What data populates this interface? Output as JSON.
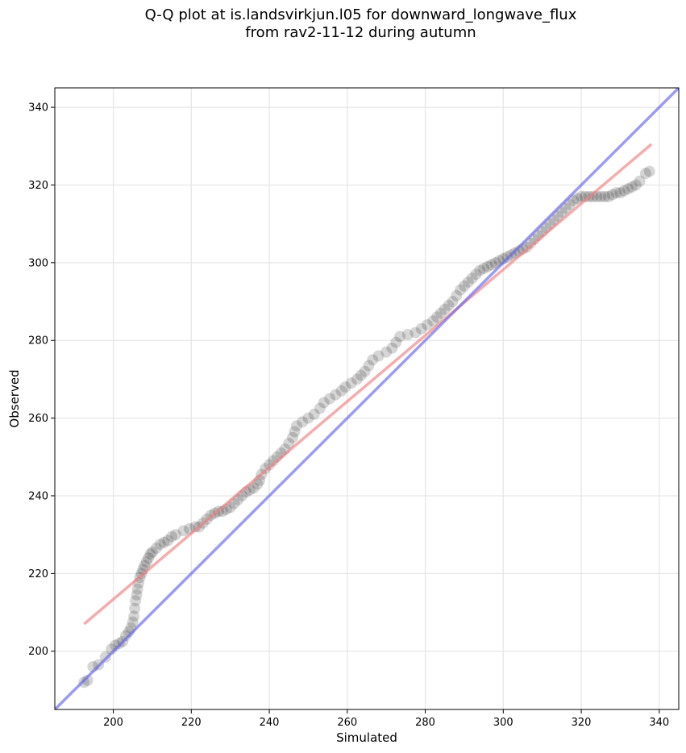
{
  "chart_data": {
    "type": "scatter",
    "title": [
      "Q-Q plot at is.landsvirkjun.l05 for downward_longwave_flux",
      "from rav2-11-12 during autumn"
    ],
    "xlabel": "Simulated",
    "ylabel": "Observed",
    "xlim": [
      185,
      345
    ],
    "ylim": [
      185,
      345
    ],
    "xticks": [
      200,
      220,
      240,
      260,
      280,
      300,
      320,
      340
    ],
    "yticks": [
      200,
      220,
      240,
      260,
      280,
      300,
      320,
      340
    ],
    "grid": true,
    "series": [
      {
        "name": "quantiles",
        "color": "#000000",
        "points": [
          [
            192.5,
            192
          ],
          [
            193.4,
            192.5
          ],
          [
            194.8,
            196
          ],
          [
            196.2,
            196.5
          ],
          [
            198,
            198.5
          ],
          [
            199.5,
            200.5
          ],
          [
            200.5,
            201.5
          ],
          [
            201.5,
            202
          ],
          [
            202.4,
            202.5
          ],
          [
            203.2,
            204
          ],
          [
            204,
            205
          ],
          [
            204.5,
            206
          ],
          [
            205,
            207.5
          ],
          [
            205.3,
            209
          ],
          [
            205.5,
            211
          ],
          [
            205.7,
            213
          ],
          [
            206,
            214.5
          ],
          [
            206.2,
            216
          ],
          [
            206.5,
            217.5
          ],
          [
            206.8,
            219
          ],
          [
            207.2,
            220
          ],
          [
            207.6,
            221
          ],
          [
            208,
            222
          ],
          [
            208.5,
            223
          ],
          [
            209,
            224
          ],
          [
            209.5,
            225
          ],
          [
            210,
            225.5
          ],
          [
            211,
            226.5
          ],
          [
            212,
            227.5
          ],
          [
            213,
            228
          ],
          [
            214,
            228.5
          ],
          [
            215,
            229.5
          ],
          [
            216,
            230
          ],
          [
            218,
            231
          ],
          [
            219.5,
            231.5
          ],
          [
            221,
            232
          ],
          [
            222,
            232
          ],
          [
            223,
            233
          ],
          [
            224,
            234
          ],
          [
            225,
            235
          ],
          [
            226,
            235.5
          ],
          [
            227,
            236
          ],
          [
            228,
            236
          ],
          [
            229,
            236.5
          ],
          [
            230,
            237
          ],
          [
            231,
            238
          ],
          [
            232,
            239
          ],
          [
            233,
            240
          ],
          [
            234,
            241
          ],
          [
            235,
            241.5
          ],
          [
            236,
            242
          ],
          [
            237,
            243
          ],
          [
            237.5,
            244
          ],
          [
            238,
            245.5
          ],
          [
            239,
            247
          ],
          [
            240,
            248
          ],
          [
            241,
            249
          ],
          [
            242,
            250
          ],
          [
            243,
            251
          ],
          [
            244,
            252
          ],
          [
            245,
            253.5
          ],
          [
            246,
            255
          ],
          [
            246.5,
            256.5
          ],
          [
            247,
            258
          ],
          [
            248.5,
            259
          ],
          [
            250,
            260
          ],
          [
            251.5,
            261
          ],
          [
            253,
            262.5
          ],
          [
            254,
            264
          ],
          [
            255.5,
            265
          ],
          [
            257,
            266
          ],
          [
            258.5,
            267
          ],
          [
            259.5,
            268
          ],
          [
            261,
            269
          ],
          [
            262.5,
            270
          ],
          [
            263.5,
            271
          ],
          [
            264.5,
            272
          ],
          [
            265.5,
            273.5
          ],
          [
            266.5,
            275
          ],
          [
            268,
            276
          ],
          [
            270,
            277
          ],
          [
            271.5,
            278
          ],
          [
            272.5,
            279.5
          ],
          [
            273.5,
            281
          ],
          [
            275.5,
            281.5
          ],
          [
            277.5,
            282
          ],
          [
            279,
            283
          ],
          [
            280.5,
            284
          ],
          [
            282,
            285
          ],
          [
            283,
            286
          ],
          [
            284,
            287
          ],
          [
            285,
            288
          ],
          [
            286,
            289
          ],
          [
            287,
            290
          ],
          [
            288,
            291.5
          ],
          [
            289,
            293
          ],
          [
            290,
            294
          ],
          [
            291,
            295
          ],
          [
            292,
            296
          ],
          [
            293,
            297
          ],
          [
            294,
            298
          ],
          [
            295,
            298.5
          ],
          [
            296,
            299
          ],
          [
            297,
            299.5
          ],
          [
            298,
            300
          ],
          [
            299,
            300.5
          ],
          [
            300,
            301
          ],
          [
            301,
            301.5
          ],
          [
            302,
            302
          ],
          [
            303,
            302.5
          ],
          [
            304,
            303
          ],
          [
            305,
            303.5
          ],
          [
            306,
            304
          ],
          [
            307,
            305
          ],
          [
            308,
            306
          ],
          [
            309,
            307
          ],
          [
            310,
            308
          ],
          [
            311,
            309
          ],
          [
            312,
            310
          ],
          [
            313,
            311
          ],
          [
            314,
            312
          ],
          [
            315,
            313
          ],
          [
            316,
            314
          ],
          [
            317,
            315
          ],
          [
            318,
            316
          ],
          [
            319,
            316.5
          ],
          [
            320,
            317
          ],
          [
            321,
            317
          ],
          [
            322,
            317
          ],
          [
            323,
            317
          ],
          [
            324,
            317
          ],
          [
            325,
            317
          ],
          [
            326,
            317
          ],
          [
            327,
            317
          ],
          [
            328,
            317.5
          ],
          [
            329,
            318
          ],
          [
            330,
            318
          ],
          [
            331,
            318.5
          ],
          [
            332,
            319
          ],
          [
            333,
            319.5
          ],
          [
            334,
            320
          ],
          [
            335,
            321
          ],
          [
            336.5,
            323
          ],
          [
            337.5,
            323.5
          ]
        ]
      }
    ],
    "reference_lines": [
      {
        "name": "fit-line",
        "color": "#f08080",
        "points": [
          [
            192.5,
            207
          ],
          [
            338,
            330.5
          ]
        ]
      },
      {
        "name": "identity-line",
        "color": "#6666ee",
        "points": [
          [
            185,
            185
          ],
          [
            345,
            345
          ]
        ]
      }
    ]
  }
}
